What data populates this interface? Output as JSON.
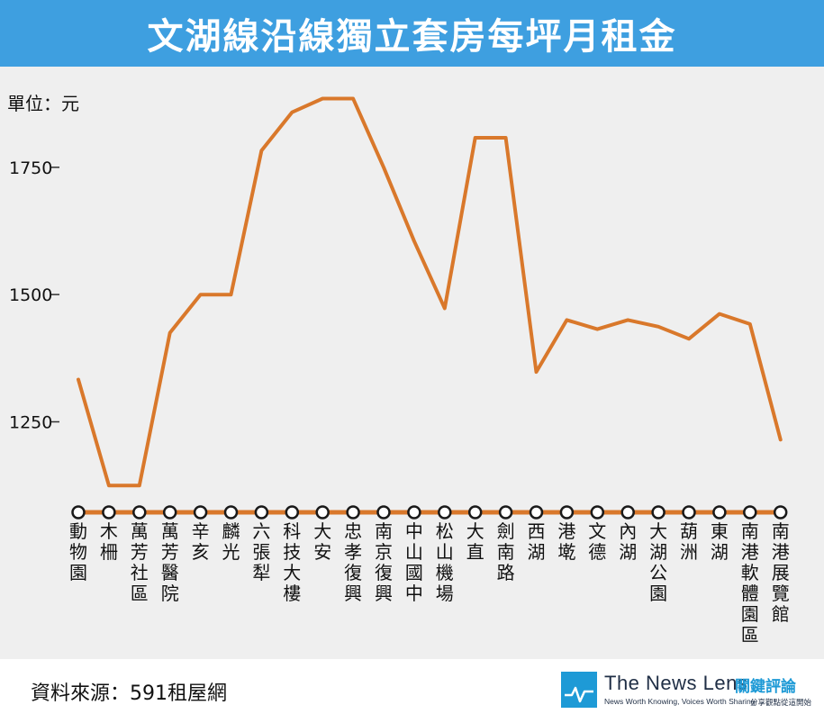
{
  "title": "文湖線沿線獨立套房每坪月租金",
  "source": "資料來源：591租屋網",
  "logo": {
    "name": "The News Lens",
    "name_cn": "關鍵評論",
    "tagline": "News Worth Knowing, Voices Worth Sharing",
    "tagline_cn": "分享觀點從這開始"
  },
  "colors": {
    "title_bg": "#3e9fe0",
    "line": "#d9782b",
    "chart_bg": "#efefef",
    "logo_blue": "#1e9ad6"
  },
  "chart_data": {
    "type": "line",
    "unit_label": "單位：元",
    "yticks": [
      1250,
      1500,
      1750
    ],
    "ylim": [
      1120,
      1900
    ],
    "grid": false,
    "categories": [
      "動物園",
      "木柵",
      "萬芳社區",
      "萬芳醫院",
      "辛亥",
      "麟光",
      "六張犁",
      "科技大樓",
      "大安",
      "忠孝復興",
      "南京復興",
      "中山國中",
      "松山機場",
      "大直",
      "劍南路",
      "西湖",
      "港墘",
      "文德",
      "內湖",
      "大湖公園",
      "葫洲",
      "東湖",
      "南港軟體園區",
      "南港展覽館"
    ],
    "values": [
      1333,
      1125,
      1125,
      1425,
      1500,
      1500,
      1783,
      1858,
      1885,
      1885,
      1750,
      1605,
      1473,
      1808,
      1808,
      1348,
      1450,
      1432,
      1450,
      1437,
      1413,
      1462,
      1442,
      1215
    ]
  }
}
